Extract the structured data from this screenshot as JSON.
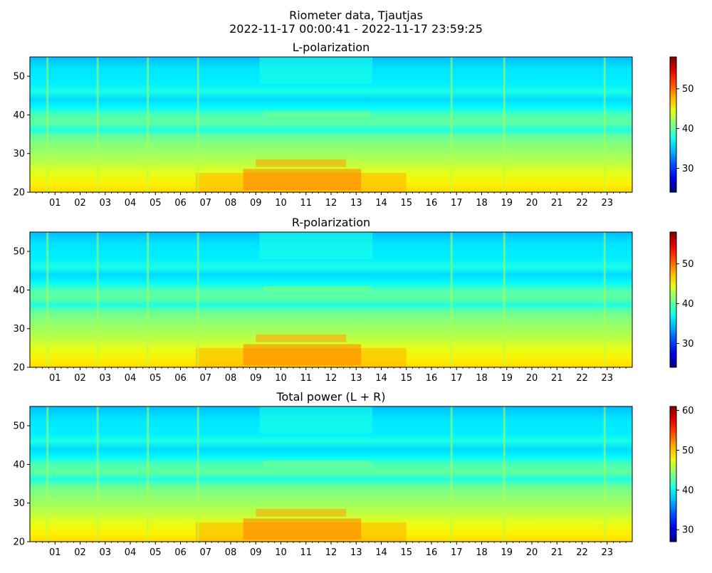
{
  "figure": {
    "title_line1": "Riometer data, Tjautjas",
    "title_line2": "2022-11-17 00:00:41 - 2022-11-17 23:59:25"
  },
  "chart_data": [
    {
      "type": "heatmap",
      "title": "L-polarization",
      "xlabel": "",
      "ylabel": "",
      "x_ticks": [
        "01",
        "02",
        "03",
        "04",
        "05",
        "06",
        "07",
        "08",
        "09",
        "10",
        "11",
        "12",
        "13",
        "14",
        "15",
        "16",
        "17",
        "18",
        "19",
        "20",
        "21",
        "22",
        "23"
      ],
      "xlim_hours": [
        0,
        24
      ],
      "ylim": [
        20,
        55
      ],
      "y_ticks": [
        20,
        30,
        40,
        50
      ],
      "colorbar": {
        "colormap": "jet",
        "range": [
          24,
          58
        ],
        "ticks": [
          30,
          40,
          50
        ]
      },
      "grid": false
    },
    {
      "type": "heatmap",
      "title": "R-polarization",
      "xlabel": "",
      "ylabel": "",
      "x_ticks": [
        "01",
        "02",
        "03",
        "04",
        "05",
        "06",
        "07",
        "08",
        "09",
        "10",
        "11",
        "12",
        "13",
        "14",
        "15",
        "16",
        "17",
        "18",
        "19",
        "20",
        "21",
        "22",
        "23"
      ],
      "xlim_hours": [
        0,
        24
      ],
      "ylim": [
        20,
        55
      ],
      "y_ticks": [
        20,
        30,
        40,
        50
      ],
      "colorbar": {
        "colormap": "jet",
        "range": [
          24,
          58
        ],
        "ticks": [
          30,
          40,
          50
        ]
      },
      "grid": false
    },
    {
      "type": "heatmap",
      "title": "Total power (L + R)",
      "xlabel": "",
      "ylabel": "",
      "x_ticks": [
        "01",
        "02",
        "03",
        "04",
        "05",
        "06",
        "07",
        "08",
        "09",
        "10",
        "11",
        "12",
        "13",
        "14",
        "15",
        "16",
        "17",
        "18",
        "19",
        "20",
        "21",
        "22",
        "23"
      ],
      "xlim_hours": [
        0,
        24
      ],
      "ylim": [
        20,
        55
      ],
      "y_ticks": [
        20,
        30,
        40,
        50
      ],
      "colorbar": {
        "colormap": "jet",
        "range": [
          27,
          61
        ],
        "ticks": [
          30,
          40,
          50,
          60
        ]
      },
      "grid": false
    }
  ]
}
